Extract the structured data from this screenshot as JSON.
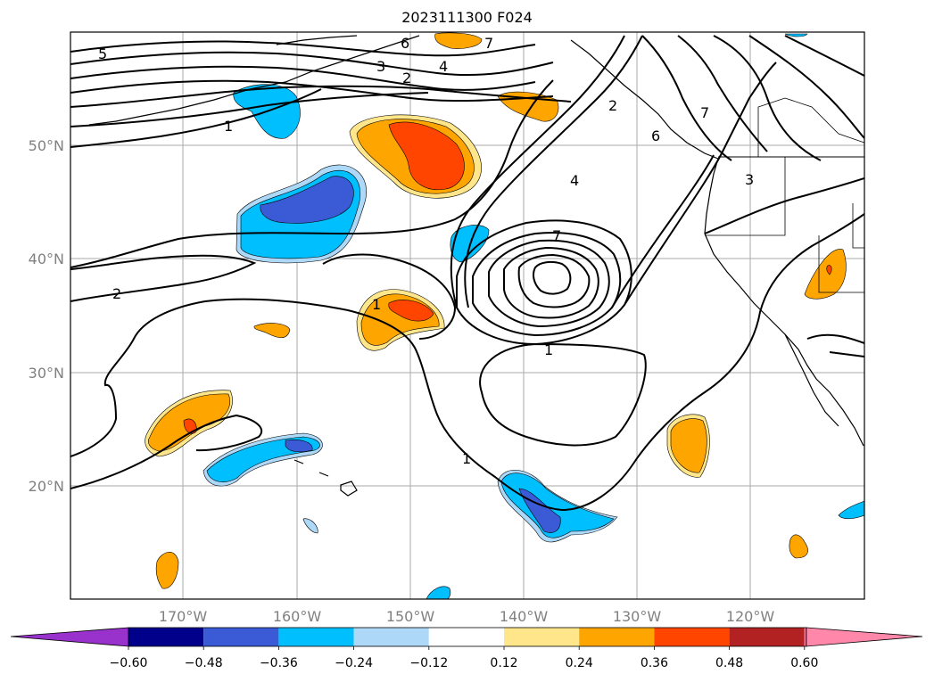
{
  "title": "2023111300 F024",
  "map": {
    "lat_labels": [
      "50°N",
      "40°N",
      "30°N",
      "20°N"
    ],
    "lon_labels": [
      "170°W",
      "160°W",
      "150°W",
      "140°W",
      "130°W",
      "120°W"
    ]
  },
  "contour_labels": [
    "5",
    "6",
    "7",
    "3",
    "4",
    "2",
    "1",
    "2",
    "1",
    "4",
    "7",
    "7",
    "3",
    "2",
    "1",
    "1",
    "6"
  ],
  "colorbar": {
    "ticks": [
      "−0.60",
      "−0.48",
      "−0.36",
      "−0.24",
      "−0.12",
      "0.12",
      "0.24",
      "0.36",
      "0.48",
      "0.60"
    ],
    "colors": [
      "#9932cc",
      "#00008b",
      "#3b5bd6",
      "#00bfff",
      "#add8f7",
      "#ffffff",
      "#ffe68a",
      "#ffa500",
      "#ff4500",
      "#b22222",
      "#ff88aa"
    ]
  }
}
